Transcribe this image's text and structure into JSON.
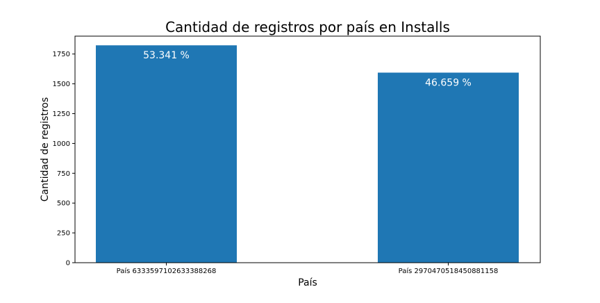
{
  "chart_data": {
    "type": "bar",
    "title": "Cantidad de registros por país en Installs",
    "xlabel": "País",
    "ylabel": "Cantidad de registros",
    "categories": [
      "País 6333597102633388268",
      "País 2970470518450881158"
    ],
    "values": [
      1823,
      1594
    ],
    "bar_labels": [
      "53.341 %",
      "46.659 %"
    ],
    "ylim": [
      0,
      1900
    ],
    "yticks": [
      0,
      250,
      500,
      750,
      1000,
      1250,
      1500,
      1750
    ],
    "grid": false,
    "legend": "none",
    "colors": {
      "bar": "#1f77b4",
      "bar_label": "#ffffff",
      "axis": "#000000",
      "text": "#000000"
    }
  }
}
